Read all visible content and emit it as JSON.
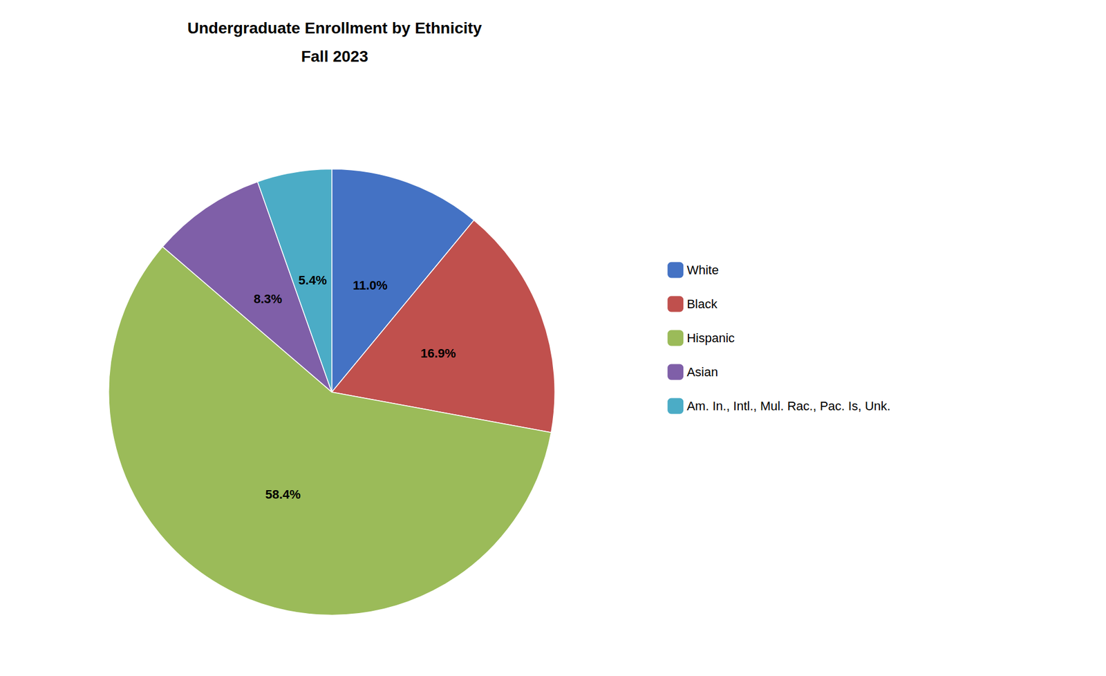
{
  "chart_data": {
    "type": "pie",
    "title": "Undergraduate Enrollment by Ethnicity",
    "subtitle": "Fall 2023",
    "categories": [
      "White",
      "Black",
      "Hispanic",
      "Asian",
      "Am. In., Intl., Mul. Rac., Pac. Is, Unk."
    ],
    "values": [
      11.0,
      16.9,
      58.4,
      8.3,
      5.4
    ],
    "value_labels": [
      "11.0%",
      "16.9%",
      "58.4%",
      "8.3%",
      "5.4%"
    ],
    "colors": [
      "#4472c4",
      "#c0504d",
      "#9bbb59",
      "#7f5fa8",
      "#4bacc6"
    ],
    "data_labels": true,
    "legend": "right"
  }
}
